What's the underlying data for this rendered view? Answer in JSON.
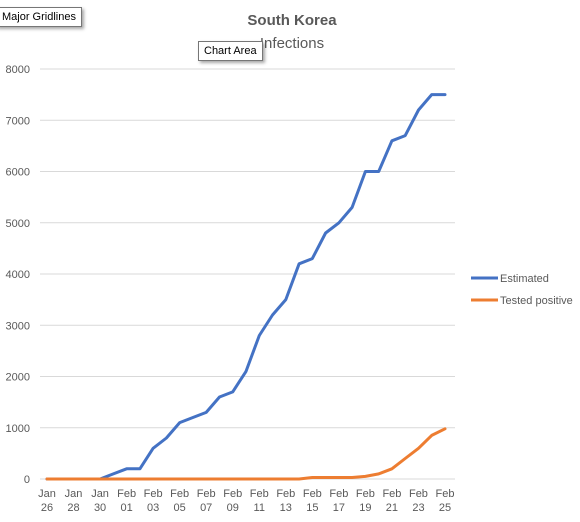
{
  "tooltips": {
    "gridlines": "Major Gridlines",
    "chart_area": "Chart Area"
  },
  "colors": {
    "estimated": "#4472C4",
    "tested_positive": "#ED7D31",
    "gridline": "#D9D9D9",
    "axis_text": "#595959",
    "title_text": "#595959"
  },
  "chart_data": {
    "type": "line",
    "title": "South Korea",
    "subtitle": "Infections",
    "xlabel": "",
    "ylabel": "",
    "ylim": [
      0,
      8000
    ],
    "yticks": [
      0,
      1000,
      2000,
      3000,
      4000,
      5000,
      6000,
      7000,
      8000
    ],
    "grid": true,
    "legend_position": "right",
    "x": [
      "Jan 26",
      "Jan 27",
      "Jan 28",
      "Jan 29",
      "Jan 30",
      "Jan 31",
      "Feb 01",
      "Feb 02",
      "Feb 03",
      "Feb 04",
      "Feb 05",
      "Feb 06",
      "Feb 07",
      "Feb 08",
      "Feb 09",
      "Feb 10",
      "Feb 11",
      "Feb 12",
      "Feb 13",
      "Feb 14",
      "Feb 15",
      "Feb 16",
      "Feb 17",
      "Feb 18",
      "Feb 19",
      "Feb 20",
      "Feb 21",
      "Feb 22",
      "Feb 23",
      "Feb 24",
      "Feb 25"
    ],
    "tick_labels": [
      [
        "Jan",
        "26"
      ],
      [
        "Jan",
        "28"
      ],
      [
        "Jan",
        "30"
      ],
      [
        "Feb",
        "01"
      ],
      [
        "Feb",
        "03"
      ],
      [
        "Feb",
        "05"
      ],
      [
        "Feb",
        "07"
      ],
      [
        "Feb",
        "09"
      ],
      [
        "Feb",
        "11"
      ],
      [
        "Feb",
        "13"
      ],
      [
        "Feb",
        "15"
      ],
      [
        "Feb",
        "17"
      ],
      [
        "Feb",
        "19"
      ],
      [
        "Feb",
        "21"
      ],
      [
        "Feb",
        "23"
      ],
      [
        "Feb",
        "25"
      ]
    ],
    "series": [
      {
        "name": "Estimated",
        "values": [
          0,
          0,
          0,
          0,
          0,
          100,
          200,
          200,
          600,
          800,
          1100,
          1200,
          1300,
          1600,
          1700,
          2100,
          2800,
          3200,
          3500,
          4200,
          4300,
          4800,
          5000,
          5300,
          6000,
          6000,
          6600,
          6700,
          7200,
          7500,
          7500
        ]
      },
      {
        "name": "Tested positive",
        "values": [
          0,
          0,
          0,
          0,
          0,
          0,
          0,
          0,
          0,
          0,
          0,
          0,
          0,
          0,
          0,
          0,
          0,
          0,
          0,
          0,
          30,
          30,
          30,
          30,
          50,
          100,
          200,
          400,
          600,
          850,
          980
        ]
      }
    ]
  }
}
